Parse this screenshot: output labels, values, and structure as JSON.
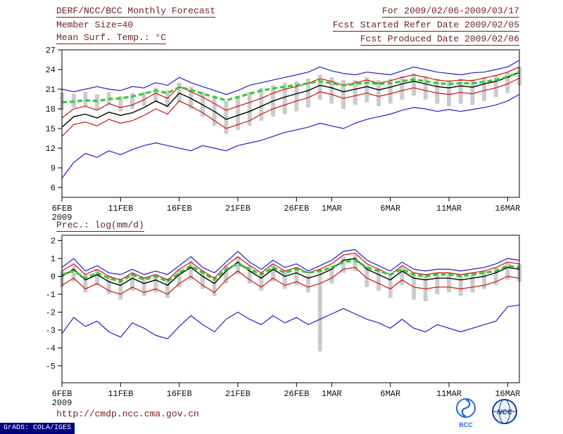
{
  "header": {
    "left_lines": [
      "DERF/NCC/BCC Monthly Forecast",
      "Member Size=40",
      "Mean Surf. Temp.: °C"
    ],
    "right_lines": [
      "For 2009/02/06-2009/03/17",
      "Fcst Started Refer Date 2009/02/05",
      "Fcst Produced Date 2009/02/06"
    ]
  },
  "footer": {
    "url": "http://cmdp.ncc.cma.gov.cn",
    "logos": [
      "BCC",
      "NCC"
    ],
    "stamp": "GrADS: COLA/IGES"
  },
  "colors": {
    "header_text": "#6e1f1f",
    "axis_text": "#111111",
    "blue_line": "#2020cc",
    "red_line": "#cc1111",
    "mean_line": "#000000",
    "green_line": "#33cc33",
    "spread_bar": "#cccccc",
    "stamp_bg": "#00007e",
    "logo_blue": "#2b6cd4",
    "logo_dark_blue": "#12418f"
  },
  "chart_data": [
    {
      "type": "line",
      "title": "Mean Surf. Temp.: °C",
      "xlabel": "",
      "ylabel": "",
      "n_points": 40,
      "ylim": [
        4.5,
        27.0
      ],
      "yticks": [
        6,
        9,
        12,
        15,
        18,
        21,
        24,
        27
      ],
      "xticks": [
        {
          "pos": 0,
          "label": "6FEB",
          "sublabel": "2009"
        },
        {
          "pos": 5,
          "label": "11FEB"
        },
        {
          "pos": 10,
          "label": "16FEB"
        },
        {
          "pos": 15,
          "label": "21FEB"
        },
        {
          "pos": 20,
          "label": "26FEB"
        },
        {
          "pos": 23,
          "label": "1MAR"
        },
        {
          "pos": 28,
          "label": "6MAR"
        },
        {
          "pos": 33,
          "label": "11MAR"
        },
        {
          "pos": 38,
          "label": "16MAR"
        }
      ],
      "series": [
        {
          "name": "blue-upper",
          "color": "#2020cc",
          "width": 1.2,
          "values": [
            21.0,
            20.6,
            21.0,
            21.4,
            21.0,
            20.8,
            21.4,
            21.2,
            22.0,
            21.6,
            22.8,
            22.0,
            21.4,
            20.8,
            20.2,
            20.8,
            21.6,
            22.0,
            22.4,
            22.8,
            23.2,
            23.6,
            24.4,
            23.8,
            23.4,
            23.2,
            23.6,
            23.4,
            23.2,
            23.8,
            24.4,
            24.0,
            23.6,
            23.4,
            23.2,
            23.5,
            23.6,
            24.0,
            24.4,
            25.4
          ]
        },
        {
          "name": "blue-lower",
          "color": "#2020cc",
          "width": 1.2,
          "values": [
            7.4,
            9.8,
            11.2,
            10.6,
            11.6,
            11.0,
            11.8,
            12.4,
            12.8,
            12.4,
            12.0,
            11.6,
            12.4,
            12.0,
            11.6,
            12.4,
            12.8,
            13.2,
            13.8,
            14.4,
            14.8,
            15.2,
            15.8,
            15.4,
            15.0,
            15.8,
            16.4,
            16.8,
            17.2,
            17.8,
            18.2,
            18.0,
            17.6,
            17.9,
            17.6,
            17.9,
            18.2,
            18.6,
            19.2,
            20.2
          ]
        },
        {
          "name": "red-upper",
          "color": "#cc1111",
          "width": 1.2,
          "values": [
            16.6,
            18.0,
            18.4,
            17.8,
            18.8,
            18.2,
            18.6,
            19.4,
            20.4,
            19.6,
            21.4,
            20.6,
            19.8,
            18.8,
            17.8,
            18.4,
            19.0,
            19.6,
            20.4,
            21.0,
            21.4,
            21.9,
            22.6,
            22.2,
            21.6,
            22.0,
            22.4,
            21.9,
            22.3,
            22.8,
            23.2,
            22.8,
            22.4,
            22.2,
            22.4,
            22.3,
            22.7,
            23.1,
            23.6,
            24.4
          ]
        },
        {
          "name": "red-lower",
          "color": "#cc1111",
          "width": 1.2,
          "values": [
            13.8,
            15.6,
            16.0,
            15.4,
            16.4,
            15.8,
            16.2,
            17.0,
            18.0,
            17.2,
            19.2,
            18.4,
            17.4,
            16.2,
            15.0,
            15.6,
            16.2,
            17.2,
            18.0,
            18.6,
            19.2,
            19.7,
            20.6,
            20.2,
            19.6,
            20.0,
            20.4,
            19.9,
            20.3,
            20.8,
            21.2,
            20.8,
            20.4,
            20.2,
            20.5,
            20.3,
            20.8,
            21.2,
            21.8,
            22.7
          ]
        },
        {
          "name": "ensemble-mean",
          "color": "#000000",
          "width": 1.4,
          "values": [
            15.2,
            16.8,
            17.2,
            16.6,
            17.5,
            17.0,
            17.4,
            18.2,
            19.2,
            18.4,
            20.4,
            19.6,
            18.6,
            17.6,
            16.4,
            17.0,
            17.6,
            18.4,
            19.2,
            19.8,
            20.3,
            20.8,
            21.6,
            21.2,
            20.6,
            21.0,
            21.4,
            20.9,
            21.3,
            21.8,
            22.2,
            21.8,
            21.4,
            21.2,
            21.5,
            21.3,
            21.8,
            22.2,
            22.8,
            23.6
          ]
        },
        {
          "name": "green-dashed",
          "color": "#33cc33",
          "width": 3.2,
          "dash": true,
          "values": [
            19.0,
            19.1,
            19.3,
            19.2,
            19.5,
            19.6,
            19.9,
            20.3,
            20.8,
            20.4,
            21.3,
            20.9,
            20.3,
            19.8,
            19.3,
            19.8,
            20.3,
            20.8,
            21.1,
            21.4,
            21.6,
            21.9,
            22.2,
            21.9,
            21.6,
            21.8,
            22.0,
            21.8,
            21.9,
            22.2,
            22.5,
            22.2,
            21.9,
            21.8,
            21.9,
            21.9,
            22.1,
            22.4,
            22.9,
            23.6
          ]
        }
      ],
      "bars": {
        "color": "#cccccc",
        "top": [
          20.5,
          20.3,
          20.6,
          20.2,
          20.6,
          20.0,
          20.4,
          20.6,
          21.2,
          20.8,
          22.0,
          21.4,
          20.6,
          19.8,
          19.2,
          19.8,
          20.6,
          21.2,
          21.6,
          22.0,
          22.2,
          22.6,
          23.2,
          22.8,
          22.4,
          22.4,
          22.8,
          22.4,
          22.6,
          23.0,
          23.4,
          23.0,
          22.6,
          22.4,
          22.6,
          22.5,
          22.8,
          23.2,
          23.6,
          24.4
        ],
        "bottom": [
          17.8,
          18.2,
          18.4,
          17.8,
          18.6,
          17.6,
          18.0,
          18.4,
          19.0,
          18.2,
          19.0,
          18.0,
          16.8,
          15.4,
          14.2,
          14.8,
          15.4,
          16.2,
          16.8,
          17.2,
          17.6,
          18.2,
          19.4,
          18.8,
          18.0,
          18.6,
          19.0,
          18.4,
          18.8,
          19.4,
          20.0,
          19.4,
          18.8,
          18.4,
          18.8,
          18.6,
          19.2,
          19.8,
          20.4,
          21.6
        ]
      }
    },
    {
      "type": "line",
      "title": "Prec.: log(mm/d)",
      "xlabel": "",
      "ylabel": "",
      "n_points": 40,
      "ylim": [
        -5.95,
        2.3
      ],
      "yticks": [
        2,
        1,
        0,
        -1,
        -2,
        -3,
        -4,
        -5
      ],
      "xticks": [
        {
          "pos": 0,
          "label": "6FEB",
          "sublabel": "2009"
        },
        {
          "pos": 5,
          "label": "11FEB"
        },
        {
          "pos": 10,
          "label": "16FEB"
        },
        {
          "pos": 15,
          "label": "21FEB"
        },
        {
          "pos": 20,
          "label": "26FEB"
        },
        {
          "pos": 23,
          "label": "1MAR"
        },
        {
          "pos": 28,
          "label": "6MAR"
        },
        {
          "pos": 33,
          "label": "11MAR"
        },
        {
          "pos": 38,
          "label": "16MAR"
        }
      ],
      "series": [
        {
          "name": "blue-upper",
          "color": "#2020cc",
          "width": 1.2,
          "values": [
            0.5,
            1.0,
            0.3,
            0.6,
            0.2,
            0.1,
            0.4,
            0.1,
            0.3,
            0.1,
            0.6,
            1.1,
            0.5,
            0.2,
            0.8,
            1.4,
            0.8,
            0.4,
            0.9,
            0.5,
            0.7,
            0.3,
            0.6,
            0.9,
            1.4,
            1.5,
            0.9,
            0.6,
            0.3,
            0.8,
            0.4,
            0.3,
            0.4,
            0.4,
            0.3,
            0.4,
            0.5,
            0.7,
            1.0,
            0.9
          ]
        },
        {
          "name": "blue-lower",
          "color": "#2020cc",
          "width": 1.2,
          "values": [
            -3.2,
            -2.3,
            -2.8,
            -2.5,
            -3.1,
            -3.4,
            -2.6,
            -2.9,
            -3.3,
            -3.5,
            -2.8,
            -2.2,
            -2.7,
            -3.1,
            -2.4,
            -2.0,
            -2.4,
            -2.7,
            -2.2,
            -2.6,
            -2.3,
            -2.7,
            -2.4,
            -2.1,
            -1.8,
            -2.1,
            -2.4,
            -2.6,
            -2.9,
            -2.4,
            -2.9,
            -3.1,
            -2.7,
            -2.9,
            -3.1,
            -2.9,
            -2.7,
            -2.5,
            -1.7,
            -1.6
          ]
        },
        {
          "name": "red-upper",
          "color": "#cc1111",
          "width": 1.2,
          "values": [
            0.3,
            0.7,
            0.1,
            0.4,
            0.0,
            -0.2,
            0.2,
            -0.1,
            0.1,
            -0.2,
            0.4,
            0.8,
            0.3,
            -0.1,
            0.6,
            1.1,
            0.6,
            0.2,
            0.7,
            0.3,
            0.5,
            0.2,
            0.4,
            0.7,
            1.2,
            1.3,
            0.7,
            0.4,
            0.1,
            0.6,
            0.2,
            0.1,
            0.2,
            0.2,
            0.1,
            0.2,
            0.3,
            0.5,
            0.8,
            0.7
          ]
        },
        {
          "name": "red-lower",
          "color": "#cc1111",
          "width": 1.2,
          "values": [
            -0.5,
            -0.1,
            -0.7,
            -0.4,
            -0.8,
            -1.0,
            -0.6,
            -0.9,
            -0.7,
            -1.0,
            -0.4,
            0.0,
            -0.5,
            -0.9,
            -0.2,
            0.3,
            -0.2,
            -0.6,
            -0.1,
            -0.5,
            -0.3,
            -0.6,
            -0.4,
            -0.1,
            0.4,
            0.5,
            -0.1,
            -0.4,
            -0.7,
            -0.2,
            -0.6,
            -0.7,
            -0.6,
            -0.6,
            -0.7,
            -0.6,
            -0.5,
            -0.3,
            0.0,
            -0.1
          ]
        },
        {
          "name": "ensemble-mean",
          "color": "#000000",
          "width": 1.4,
          "values": [
            0.0,
            0.4,
            -0.2,
            0.1,
            -0.3,
            -0.5,
            -0.1,
            -0.4,
            -0.2,
            -0.5,
            0.1,
            0.5,
            0.0,
            -0.4,
            0.3,
            0.8,
            0.3,
            -0.1,
            0.4,
            0.0,
            0.2,
            -0.1,
            0.1,
            0.4,
            0.9,
            1.0,
            0.4,
            0.1,
            -0.2,
            0.3,
            -0.1,
            -0.2,
            -0.1,
            -0.1,
            -0.2,
            -0.1,
            0.0,
            0.2,
            0.5,
            0.4
          ]
        },
        {
          "name": "green-dashed",
          "color": "#33cc33",
          "width": 3.2,
          "dash": true,
          "values": [
            0.1,
            0.3,
            -0.1,
            0.2,
            -0.1,
            -0.3,
            0.1,
            -0.2,
            0.0,
            -0.3,
            0.2,
            0.6,
            0.2,
            -0.2,
            0.4,
            0.7,
            0.4,
            0.1,
            0.5,
            0.2,
            0.4,
            0.2,
            0.3,
            0.5,
            0.8,
            0.9,
            0.5,
            0.3,
            0.1,
            0.4,
            0.1,
            0.0,
            0.1,
            0.1,
            0.0,
            0.1,
            0.2,
            0.3,
            0.6,
            0.5
          ]
        }
      ],
      "bars": {
        "color": "#cccccc",
        "top": [
          0.3,
          0.6,
          0.1,
          0.4,
          0.0,
          -0.1,
          0.2,
          -0.1,
          0.1,
          -0.1,
          0.4,
          0.9,
          0.3,
          0.0,
          0.6,
          1.1,
          0.6,
          0.2,
          0.7,
          0.3,
          0.5,
          0.1,
          0.4,
          0.6,
          1.1,
          1.2,
          0.6,
          0.4,
          0.1,
          0.6,
          0.2,
          0.1,
          0.2,
          0.2,
          0.1,
          0.2,
          0.3,
          0.5,
          0.8,
          0.7
        ],
        "bottom": [
          -0.6,
          -0.3,
          -0.9,
          -0.5,
          -1.0,
          -1.3,
          -0.8,
          -1.1,
          -0.9,
          -1.2,
          -0.6,
          -0.2,
          -0.7,
          -1.1,
          -0.4,
          0.1,
          -0.4,
          -0.8,
          -0.3,
          -0.7,
          -0.5,
          -0.9,
          -4.2,
          -0.4,
          0.2,
          0.3,
          -0.6,
          -0.8,
          -1.2,
          -0.5,
          -1.3,
          -1.4,
          -1.0,
          -0.9,
          -1.1,
          -0.9,
          -0.7,
          -0.5,
          -0.2,
          -0.3
        ]
      }
    }
  ]
}
